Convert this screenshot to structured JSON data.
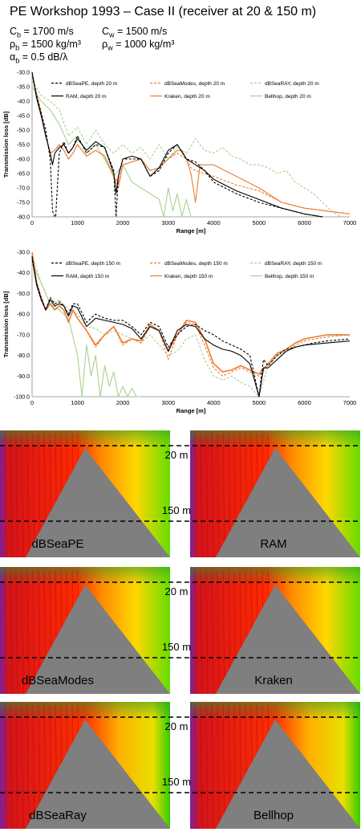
{
  "header": {
    "title": "PE Workshop 1993 – Case II (receiver at 20 & 150 m)",
    "params": [
      {
        "sym": "C",
        "sub": "b",
        "val": " = 1700 m/s"
      },
      {
        "sym": "C",
        "sub": "w",
        "val": " = 1500 m/s"
      },
      {
        "sym": "ρ",
        "sub": "b",
        "val": " = 1500 kg/m³"
      },
      {
        "sym": "ρ",
        "sub": "w",
        "val": " = 1000 kg/m³"
      },
      {
        "sym": "α",
        "sub": "b",
        "val": " = 0.5 dB/λ"
      }
    ]
  },
  "colors": {
    "dBSeaPE": "#000000",
    "RAM": "#000000",
    "dBSeaModes": "#ed7d31",
    "Kraken": "#ed7d31",
    "dBSeaRAY": "#a9d18e",
    "Bellhop": "#a9d18e",
    "grey_triangle": "#7f7f7f"
  },
  "chart_data": [
    {
      "type": "line",
      "xlabel": "Range [m]",
      "ylabel": "Transmission loss [dB]",
      "xlim": [
        0,
        7000
      ],
      "ylim": [
        -80,
        -30
      ],
      "xticks": [
        "0",
        "1000",
        "2000",
        "3000",
        "4000",
        "5000",
        "6000",
        "7000"
      ],
      "yticks": [
        "-30.0",
        "-35.0",
        "-40.0",
        "-45.0",
        "-50.0",
        "-55.0",
        "-60.0",
        "-65.0",
        "-70.0",
        "-75.0",
        "-80.0"
      ],
      "legend": "top",
      "series": [
        {
          "name": "dBSeaPE, depth 20 m",
          "key": "dBSeaPE",
          "dash": "3,2",
          "x": [
            0,
            100,
            200,
            300,
            400,
            450,
            500,
            520,
            600,
            700,
            800,
            900,
            1000,
            1200,
            1400,
            1600,
            1800,
            1850,
            1900,
            2000,
            2200,
            2400,
            2600,
            2800,
            3000,
            3200,
            3400,
            3600,
            3800,
            4000,
            4500,
            5000,
            5500,
            6000,
            6400
          ],
          "y": [
            -30,
            -38,
            -44,
            -50,
            -60,
            -78,
            -80,
            -80,
            -58,
            -54,
            -58,
            -56,
            -52,
            -58,
            -55,
            -56,
            -64,
            -80,
            -66,
            -60,
            -60,
            -60,
            -66,
            -64,
            -58,
            -55,
            -60,
            -61,
            -64,
            -68,
            -72,
            -75,
            -77,
            -79,
            -80
          ]
        },
        {
          "name": "dBSeaModes, depth 20 m",
          "key": "dBSeaModes",
          "dash": "3,2",
          "x": [
            0,
            100,
            200,
            300,
            400,
            500,
            600,
            700,
            800,
            900,
            1000,
            1200,
            1400,
            1600,
            1800,
            1900,
            2000,
            2200,
            2400,
            2600,
            2800,
            3000,
            3200,
            3400,
            3500,
            3600,
            4000,
            4500,
            5000,
            5500,
            6000,
            6500,
            7000
          ],
          "y": [
            -31,
            -38,
            -44,
            -52,
            -58,
            -57,
            -55,
            -57,
            -60,
            -58,
            -55,
            -59,
            -57,
            -59,
            -66,
            -68,
            -62,
            -61,
            -60,
            -64,
            -63,
            -60,
            -58,
            -60,
            -63,
            -64,
            -66,
            -69,
            -71,
            -75,
            -77,
            -78,
            -79
          ]
        },
        {
          "name": "dBSeaRAY, depth 20 m",
          "key": "dBSeaRAY",
          "dash": "3,2",
          "x": [
            0,
            200,
            400,
            600,
            800,
            1000,
            1200,
            1400,
            1600,
            1800,
            2000,
            2200,
            2400,
            2600,
            2800,
            3000,
            3200,
            3400,
            3600,
            3800,
            4000,
            4200,
            4400,
            4600,
            4800,
            5000,
            5200,
            5400,
            5600,
            5800,
            6000,
            6200,
            6400,
            6600,
            6800
          ],
          "y": [
            -33,
            -38,
            -40,
            -43,
            -52,
            -49,
            -55,
            -50,
            -55,
            -58,
            -55,
            -58,
            -56,
            -60,
            -55,
            -60,
            -56,
            -58,
            -53,
            -57,
            -58,
            -56,
            -59,
            -60,
            -62,
            -62,
            -63,
            -65,
            -64,
            -68,
            -70,
            -72,
            -75,
            -78,
            -80
          ]
        },
        {
          "name": "RAM, depth 20 m",
          "key": "RAM",
          "dash": "",
          "x": [
            0,
            100,
            200,
            300,
            400,
            450,
            500,
            600,
            700,
            800,
            900,
            1000,
            1200,
            1400,
            1600,
            1800,
            1850,
            1900,
            2000,
            2200,
            2400,
            2600,
            2800,
            3000,
            3200,
            3400,
            3600,
            3800,
            4000,
            4500,
            5000,
            5500,
            6000,
            6400
          ],
          "y": [
            -30,
            -39,
            -45,
            -52,
            -58,
            -62,
            -58,
            -56,
            -55,
            -58,
            -56,
            -53,
            -57,
            -54,
            -56,
            -65,
            -72,
            -66,
            -60,
            -59,
            -60,
            -66,
            -63,
            -57,
            -55,
            -60,
            -62,
            -64,
            -67,
            -71,
            -74,
            -77,
            -79,
            -80
          ]
        },
        {
          "name": "Kraken, depth 20 m",
          "key": "Kraken",
          "dash": "",
          "x": [
            0,
            100,
            200,
            300,
            400,
            500,
            600,
            700,
            800,
            900,
            1000,
            1200,
            1400,
            1600,
            1800,
            1900,
            2000,
            2200,
            2400,
            2600,
            2800,
            3000,
            3200,
            3300,
            3400,
            3500,
            3600,
            3700,
            4000,
            4500,
            5000,
            5500,
            6000,
            6500,
            7000
          ],
          "y": [
            -31,
            -38,
            -44,
            -52,
            -58,
            -57,
            -55,
            -57,
            -60,
            -58,
            -55,
            -59,
            -57,
            -59,
            -66,
            -70,
            -62,
            -61,
            -60,
            -64,
            -63,
            -60,
            -57,
            -57,
            -60,
            -65,
            -75,
            -62,
            -62,
            -66,
            -70,
            -75,
            -77,
            -78,
            -79
          ]
        },
        {
          "name": "Bellhop, depth 20 m",
          "key": "Bellhop",
          "dash": "",
          "x": [
            0,
            200,
            400,
            600,
            800,
            1000,
            1200,
            1400,
            1600,
            1800,
            2000,
            2200,
            2400,
            2600,
            2800,
            2900,
            3000,
            3100,
            3200,
            3300,
            3400,
            3500
          ],
          "y": [
            -35,
            -40,
            -43,
            -48,
            -55,
            -52,
            -58,
            -55,
            -60,
            -66,
            -62,
            -68,
            -70,
            -72,
            -74,
            -80,
            -70,
            -78,
            -72,
            -80,
            -74,
            -80
          ]
        }
      ]
    },
    {
      "type": "line",
      "xlabel": "Range [m]",
      "ylabel": "Transmission loss [dB]",
      "xlim": [
        0,
        7000
      ],
      "ylim": [
        -100,
        -30
      ],
      "xticks": [
        "0",
        "1000",
        "2000",
        "3000",
        "4000",
        "5000",
        "6000",
        "7000"
      ],
      "yticks": [
        "-30.0",
        "-40.0",
        "-50.0",
        "-60.0",
        "-70.0",
        "-80.0",
        "-90.0",
        "-100.0"
      ],
      "legend": "top",
      "series": [
        {
          "name": "dBSeaPE, depth 150 m",
          "key": "dBSeaPE",
          "dash": "3,2",
          "x": [
            0,
            100,
            200,
            300,
            400,
            500,
            600,
            700,
            800,
            900,
            1000,
            1200,
            1400,
            1600,
            1800,
            2000,
            2200,
            2400,
            2600,
            2800,
            3000,
            3200,
            3400,
            3600,
            3800,
            4000,
            4200,
            4400,
            4600,
            4800,
            4900,
            5000,
            5050,
            5100,
            5200,
            5400,
            5600,
            5800,
            6000,
            6200,
            6500,
            7000
          ],
          "y": [
            -32,
            -45,
            -52,
            -58,
            -52,
            -55,
            -54,
            -56,
            -60,
            -55,
            -55,
            -64,
            -60,
            -62,
            -63,
            -63,
            -66,
            -70,
            -64,
            -66,
            -76,
            -70,
            -66,
            -65,
            -68,
            -70,
            -73,
            -75,
            -77,
            -80,
            -90,
            -100,
            -90,
            -82,
            -85,
            -80,
            -77,
            -76,
            -75,
            -74,
            -73,
            -72
          ]
        },
        {
          "name": "dBSeaModes, depth 150 m",
          "key": "dBSeaModes",
          "dash": "3,2",
          "x": [
            0,
            100,
            200,
            300,
            400,
            500,
            600,
            700,
            800,
            900,
            1000,
            1200,
            1400,
            1600,
            1800,
            2000,
            2200,
            2400,
            2600,
            2800,
            3000,
            3200,
            3400,
            3600,
            3800,
            4000,
            4200,
            4400,
            4600,
            4800,
            5000,
            5200,
            5400,
            5600,
            5800,
            6000,
            6500,
            7000
          ],
          "y": [
            -30,
            -45,
            -52,
            -58,
            -55,
            -58,
            -56,
            -58,
            -64,
            -58,
            -62,
            -68,
            -76,
            -70,
            -66,
            -75,
            -72,
            -74,
            -66,
            -68,
            -82,
            -70,
            -64,
            -65,
            -75,
            -86,
            -90,
            -88,
            -86,
            -88,
            -90,
            -85,
            -80,
            -78,
            -75,
            -73,
            -71,
            -70
          ]
        },
        {
          "name": "dBSeaRAY, depth 150 m",
          "key": "dBSeaRAY",
          "dash": "3,2",
          "x": [
            0,
            200,
            400,
            600,
            800,
            1000,
            1200,
            1400,
            1600,
            1800,
            2000,
            2200,
            2400,
            2600,
            2800,
            3000,
            3200,
            3400,
            3600,
            3800,
            4000,
            4200,
            4400,
            4600,
            4800,
            5000,
            5200,
            5400,
            5600,
            5800,
            6000
          ],
          "y": [
            -31,
            -45,
            -55,
            -53,
            -58,
            -60,
            -66,
            -67,
            -70,
            -68,
            -70,
            -72,
            -74,
            -70,
            -75,
            -80,
            -78,
            -72,
            -70,
            -82,
            -90,
            -92,
            -90,
            -93,
            -95,
            -100,
            -85,
            -80,
            -77,
            -76,
            -75
          ]
        },
        {
          "name": "RAM, depth 150 m",
          "key": "RAM",
          "dash": "",
          "x": [
            0,
            100,
            200,
            300,
            400,
            500,
            600,
            700,
            800,
            900,
            1000,
            1200,
            1400,
            1600,
            1800,
            2000,
            2200,
            2400,
            2600,
            2800,
            3000,
            3200,
            3400,
            3600,
            3800,
            4000,
            4200,
            4400,
            4600,
            4800,
            4900,
            5000,
            5100,
            5200,
            5400,
            5600,
            5800,
            6000,
            6500,
            7000
          ],
          "y": [
            -33,
            -46,
            -53,
            -58,
            -53,
            -56,
            -55,
            -56,
            -61,
            -56,
            -57,
            -66,
            -62,
            -63,
            -64,
            -65,
            -67,
            -72,
            -66,
            -68,
            -78,
            -68,
            -65,
            -66,
            -72,
            -75,
            -77,
            -78,
            -80,
            -84,
            -92,
            -100,
            -86,
            -86,
            -82,
            -78,
            -76,
            -75,
            -74,
            -73
          ]
        },
        {
          "name": "Kraken, depth 150 m",
          "key": "Kraken",
          "dash": "",
          "x": [
            0,
            100,
            200,
            300,
            400,
            500,
            600,
            700,
            800,
            900,
            1000,
            1200,
            1400,
            1600,
            1800,
            2000,
            2200,
            2400,
            2600,
            2800,
            3000,
            3200,
            3400,
            3600,
            3800,
            4000,
            4200,
            4400,
            4600,
            4800,
            5000,
            5200,
            5400,
            5600,
            5800,
            6000,
            6500,
            7000
          ],
          "y": [
            -30,
            -45,
            -52,
            -58,
            -55,
            -58,
            -56,
            -58,
            -64,
            -58,
            -62,
            -68,
            -75,
            -70,
            -66,
            -74,
            -72,
            -73,
            -65,
            -68,
            -78,
            -70,
            -63,
            -64,
            -72,
            -84,
            -88,
            -87,
            -85,
            -87,
            -89,
            -84,
            -79,
            -77,
            -74,
            -72,
            -70,
            -70
          ]
        },
        {
          "name": "Bellhop, depth 150 m",
          "key": "Bellhop",
          "dash": "",
          "x": [
            0,
            200,
            400,
            600,
            800,
            1000,
            1100,
            1200,
            1300,
            1400,
            1500,
            1600,
            1700,
            1800,
            1900,
            2000,
            2100,
            2200,
            2300,
            2400
          ],
          "y": [
            -35,
            -45,
            -55,
            -58,
            -62,
            -80,
            -100,
            -75,
            -90,
            -80,
            -100,
            -85,
            -95,
            -88,
            -100,
            -95,
            -100,
            -96,
            -100,
            -100
          ]
        }
      ]
    }
  ],
  "panels": [
    {
      "label": "dBSeaPE",
      "depth_20": "20 m",
      "depth_150": "150 m"
    },
    {
      "label": "RAM"
    },
    {
      "label": "dBSeaModes",
      "depth_20": "20 m",
      "depth_150": "150 m"
    },
    {
      "label": "Kraken"
    },
    {
      "label": "dBSeaRay",
      "depth_20": "20 m",
      "depth_150": "150 m"
    },
    {
      "label": "Bellhop"
    }
  ]
}
